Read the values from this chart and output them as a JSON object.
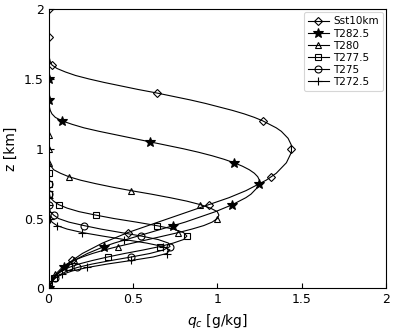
{
  "title": "",
  "xlabel": "$q_c$ [g/kg]",
  "ylabel": "z [km]",
  "xlim": [
    0,
    2.0
  ],
  "ylim": [
    0,
    2.0
  ],
  "xticks": [
    0,
    0.5,
    1,
    1.5,
    2
  ],
  "yticks": [
    0,
    0.5,
    1,
    1.5,
    2
  ],
  "legend_labels": [
    "Sst10km",
    "T282.5",
    "T280",
    "T277.5",
    "T275",
    "T272.5"
  ],
  "background_color": "#ffffff",
  "line_color": "#000000",
  "series": {
    "Sst10km": {
      "z": [
        0.0,
        0.025,
        0.05,
        0.075,
        0.1,
        0.125,
        0.15,
        0.175,
        0.2,
        0.225,
        0.25,
        0.275,
        0.3,
        0.325,
        0.35,
        0.375,
        0.4,
        0.425,
        0.45,
        0.475,
        0.5,
        0.525,
        0.55,
        0.575,
        0.6,
        0.625,
        0.65,
        0.675,
        0.7,
        0.725,
        0.75,
        0.775,
        0.8,
        0.825,
        0.85,
        0.875,
        0.9,
        0.925,
        0.95,
        0.975,
        1.0,
        1.025,
        1.05,
        1.075,
        1.1,
        1.125,
        1.15,
        1.175,
        1.2,
        1.225,
        1.25,
        1.275,
        1.3,
        1.325,
        1.35,
        1.375,
        1.4,
        1.425,
        1.45,
        1.475,
        1.5,
        1.525,
        1.55,
        1.575,
        1.6,
        1.625,
        1.65,
        1.675,
        1.7,
        1.725,
        1.75,
        1.775,
        1.8,
        1.825,
        1.85,
        1.875,
        1.9,
        1.925,
        1.95,
        1.975,
        2.0
      ],
      "qc": [
        0.0,
        0.01,
        0.02,
        0.03,
        0.05,
        0.07,
        0.09,
        0.11,
        0.14,
        0.17,
        0.2,
        0.24,
        0.28,
        0.32,
        0.37,
        0.42,
        0.47,
        0.53,
        0.59,
        0.65,
        0.71,
        0.77,
        0.83,
        0.89,
        0.95,
        1.01,
        1.07,
        1.12,
        1.17,
        1.21,
        1.25,
        1.29,
        1.32,
        1.35,
        1.37,
        1.39,
        1.41,
        1.42,
        1.43,
        1.44,
        1.44,
        1.44,
        1.43,
        1.42,
        1.4,
        1.38,
        1.35,
        1.31,
        1.27,
        1.22,
        1.16,
        1.09,
        1.01,
        0.93,
        0.84,
        0.74,
        0.64,
        0.53,
        0.43,
        0.33,
        0.24,
        0.16,
        0.1,
        0.05,
        0.02,
        0.01,
        0.005,
        0.0,
        0.0,
        0.0,
        0.0,
        0.0,
        0.0,
        0.0,
        0.0,
        0.0,
        0.0,
        0.0,
        0.0,
        0.0,
        0.0
      ]
    },
    "T282.5": {
      "z": [
        0.0,
        0.025,
        0.05,
        0.075,
        0.1,
        0.125,
        0.15,
        0.175,
        0.2,
        0.225,
        0.25,
        0.275,
        0.3,
        0.325,
        0.35,
        0.375,
        0.4,
        0.425,
        0.45,
        0.475,
        0.5,
        0.525,
        0.55,
        0.575,
        0.6,
        0.625,
        0.65,
        0.675,
        0.7,
        0.725,
        0.75,
        0.775,
        0.8,
        0.825,
        0.85,
        0.875,
        0.9,
        0.925,
        0.95,
        0.975,
        1.0,
        1.025,
        1.05,
        1.075,
        1.1,
        1.125,
        1.15,
        1.175,
        1.2,
        1.225,
        1.25,
        1.275,
        1.3,
        1.325,
        1.35,
        1.375,
        1.4,
        1.425,
        1.45,
        1.475,
        1.5
      ],
      "qc": [
        0.0,
        0.01,
        0.02,
        0.03,
        0.05,
        0.07,
        0.09,
        0.12,
        0.15,
        0.19,
        0.23,
        0.28,
        0.33,
        0.39,
        0.46,
        0.53,
        0.6,
        0.67,
        0.74,
        0.81,
        0.87,
        0.93,
        0.99,
        1.04,
        1.09,
        1.13,
        1.17,
        1.2,
        1.22,
        1.24,
        1.25,
        1.25,
        1.24,
        1.22,
        1.19,
        1.15,
        1.1,
        1.04,
        0.97,
        0.89,
        0.8,
        0.7,
        0.6,
        0.5,
        0.4,
        0.3,
        0.21,
        0.14,
        0.08,
        0.04,
        0.02,
        0.01,
        0.005,
        0.0,
        0.0,
        0.0,
        0.0,
        0.0,
        0.0,
        0.0,
        0.0
      ]
    },
    "T280": {
      "z": [
        0.0,
        0.025,
        0.05,
        0.075,
        0.1,
        0.125,
        0.15,
        0.175,
        0.2,
        0.225,
        0.25,
        0.275,
        0.3,
        0.325,
        0.35,
        0.375,
        0.4,
        0.425,
        0.45,
        0.475,
        0.5,
        0.525,
        0.55,
        0.575,
        0.6,
        0.625,
        0.65,
        0.675,
        0.7,
        0.725,
        0.75,
        0.775,
        0.8,
        0.825,
        0.85,
        0.875,
        0.9,
        0.925,
        0.95,
        0.975,
        1.0,
        1.025,
        1.05,
        1.075,
        1.1,
        1.125,
        1.15
      ],
      "qc": [
        0.0,
        0.01,
        0.02,
        0.03,
        0.04,
        0.06,
        0.08,
        0.11,
        0.15,
        0.2,
        0.26,
        0.33,
        0.41,
        0.5,
        0.59,
        0.68,
        0.77,
        0.85,
        0.92,
        0.97,
        1.0,
        1.01,
        1.0,
        0.96,
        0.9,
        0.82,
        0.72,
        0.61,
        0.49,
        0.38,
        0.28,
        0.19,
        0.12,
        0.07,
        0.03,
        0.015,
        0.005,
        0.0,
        0.0,
        0.0,
        0.0,
        0.0,
        0.0,
        0.0,
        0.0,
        0.0,
        0.0
      ]
    },
    "T277.5": {
      "z": [
        0.0,
        0.025,
        0.05,
        0.075,
        0.1,
        0.125,
        0.15,
        0.175,
        0.2,
        0.225,
        0.25,
        0.275,
        0.3,
        0.325,
        0.35,
        0.375,
        0.4,
        0.425,
        0.45,
        0.475,
        0.5,
        0.525,
        0.55,
        0.575,
        0.6,
        0.625,
        0.65,
        0.675,
        0.7,
        0.725,
        0.75,
        0.775,
        0.8,
        0.825,
        0.85
      ],
      "qc": [
        0.0,
        0.01,
        0.02,
        0.03,
        0.05,
        0.08,
        0.12,
        0.18,
        0.26,
        0.35,
        0.45,
        0.56,
        0.66,
        0.74,
        0.8,
        0.82,
        0.8,
        0.74,
        0.64,
        0.52,
        0.39,
        0.28,
        0.18,
        0.11,
        0.06,
        0.03,
        0.01,
        0.005,
        0.0,
        0.0,
        0.0,
        0.0,
        0.0,
        0.0,
        0.0
      ]
    },
    "T275": {
      "z": [
        0.0,
        0.025,
        0.05,
        0.075,
        0.1,
        0.125,
        0.15,
        0.175,
        0.2,
        0.225,
        0.25,
        0.275,
        0.3,
        0.325,
        0.35,
        0.375,
        0.4,
        0.425,
        0.45,
        0.475,
        0.5,
        0.525,
        0.55,
        0.575,
        0.6,
        0.625,
        0.65,
        0.675,
        0.7,
        0.725,
        0.75
      ],
      "qc": [
        0.0,
        0.01,
        0.02,
        0.04,
        0.07,
        0.11,
        0.17,
        0.26,
        0.37,
        0.49,
        0.6,
        0.68,
        0.72,
        0.71,
        0.65,
        0.55,
        0.43,
        0.31,
        0.21,
        0.12,
        0.06,
        0.03,
        0.01,
        0.005,
        0.0,
        0.0,
        0.0,
        0.0,
        0.0,
        0.0,
        0.0
      ]
    },
    "T272.5": {
      "z": [
        0.0,
        0.025,
        0.05,
        0.075,
        0.1,
        0.125,
        0.15,
        0.175,
        0.2,
        0.225,
        0.25,
        0.275,
        0.3,
        0.325,
        0.35,
        0.375,
        0.4,
        0.425,
        0.45,
        0.475,
        0.5,
        0.525,
        0.55,
        0.575,
        0.6,
        0.625,
        0.65,
        0.675,
        0.7
      ],
      "qc": [
        0.0,
        0.01,
        0.02,
        0.04,
        0.08,
        0.14,
        0.23,
        0.35,
        0.49,
        0.62,
        0.7,
        0.72,
        0.68,
        0.58,
        0.45,
        0.32,
        0.2,
        0.11,
        0.05,
        0.02,
        0.01,
        0.005,
        0.0,
        0.0,
        0.0,
        0.0,
        0.0,
        0.0,
        0.0
      ]
    }
  }
}
